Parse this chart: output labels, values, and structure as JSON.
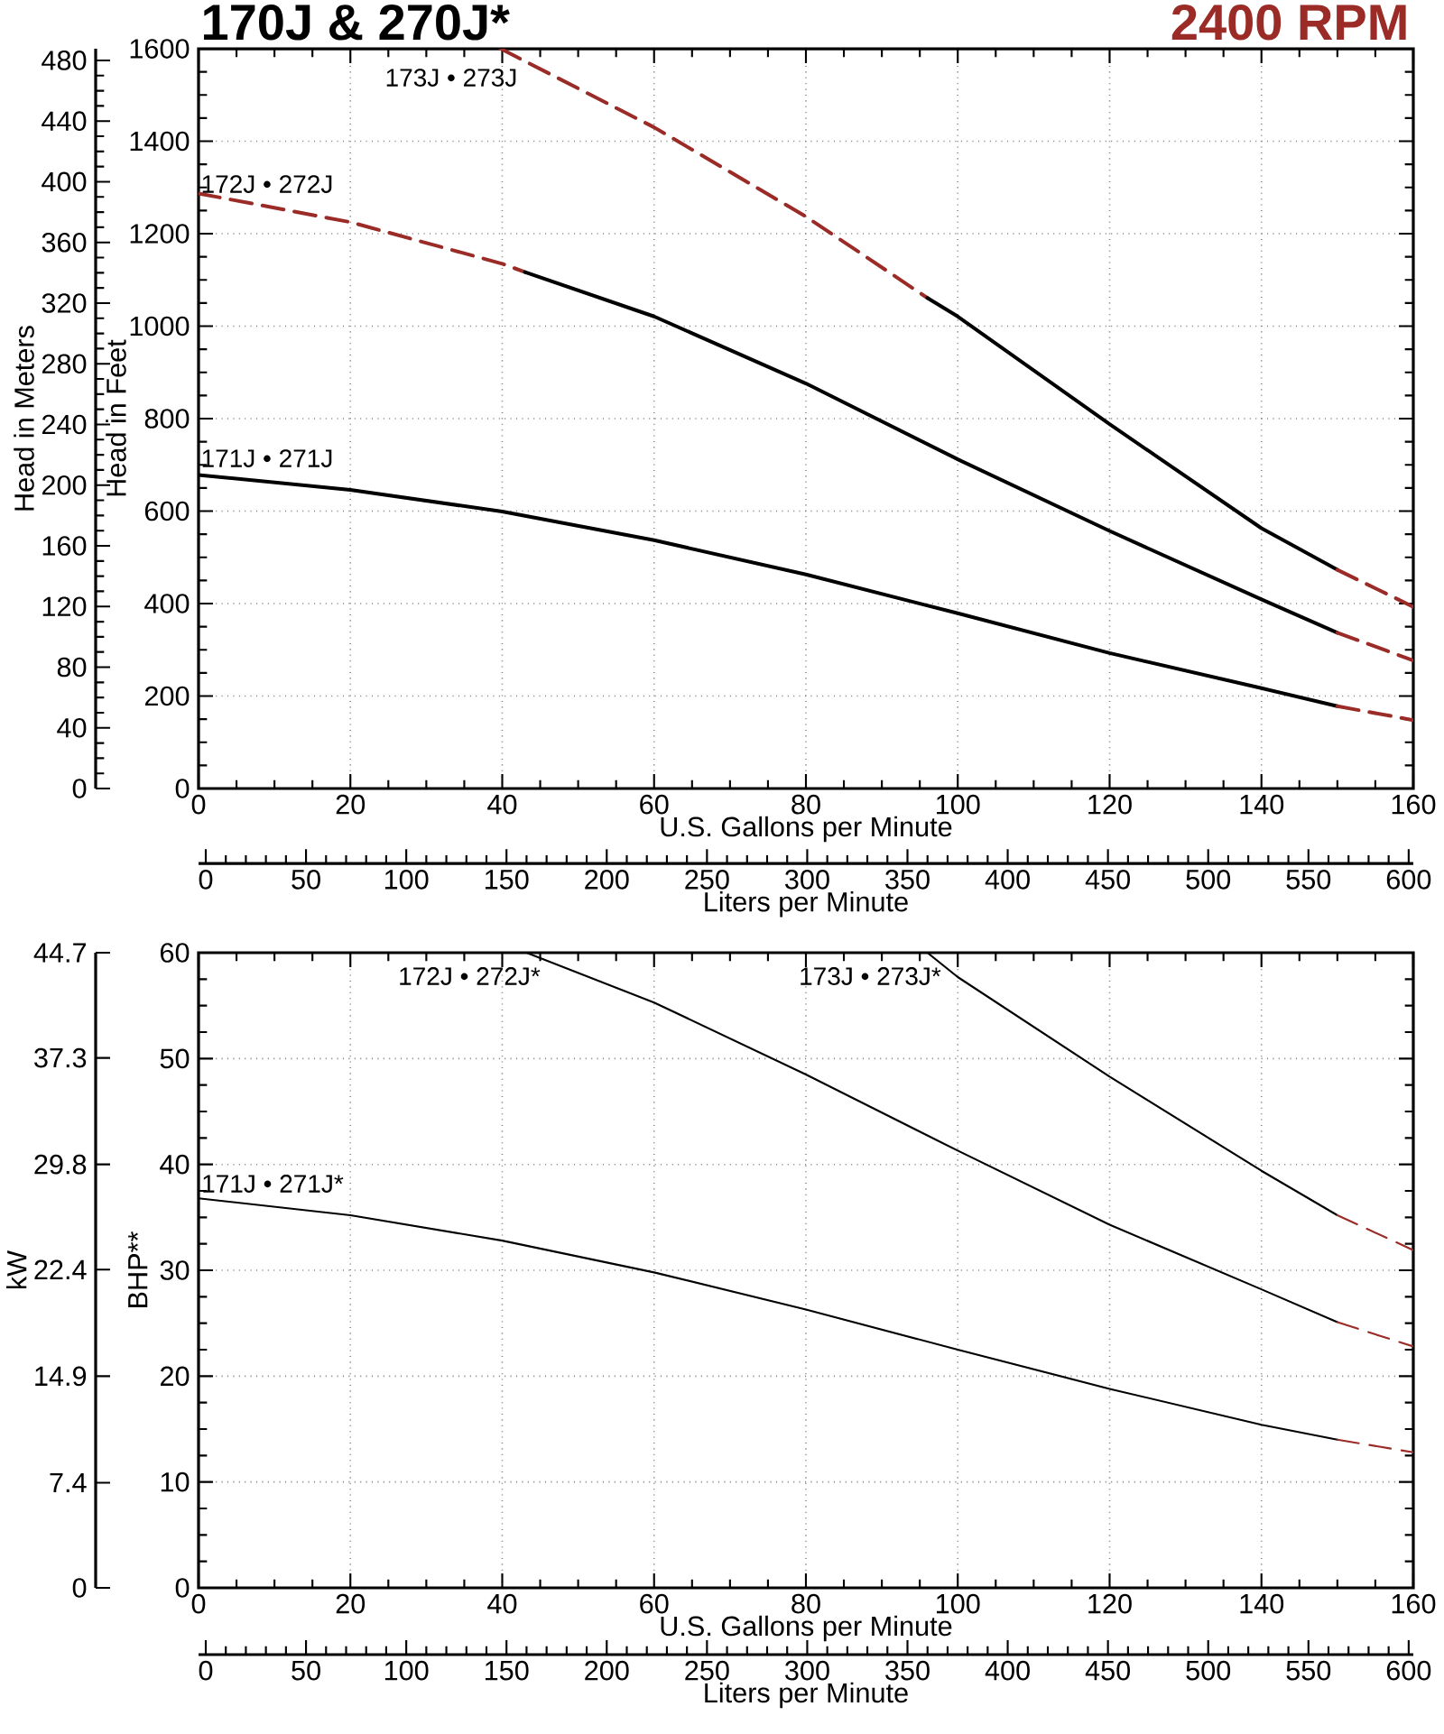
{
  "chart_data": [
    {
      "type": "line",
      "title": "170J & 270J*",
      "subtitle": "2400 RPM",
      "xlabel": "U.S. Gallons per Minute",
      "ylabel": "Head in Feet",
      "y2label": "Head in Meters",
      "x2label": "Liters per Minute",
      "xlim": [
        0,
        160
      ],
      "xticks": [
        0,
        20,
        40,
        60,
        80,
        100,
        120,
        140,
        160
      ],
      "ylim": [
        0,
        1600
      ],
      "yticks": [
        0,
        200,
        400,
        600,
        800,
        1000,
        1200,
        1400,
        1600
      ],
      "y2lim": [
        0,
        487.7
      ],
      "y2ticks": [
        0,
        40,
        80,
        120,
        160,
        200,
        240,
        280,
        320,
        360,
        400,
        440,
        480
      ],
      "x2lim": [
        -3.6,
        602.3
      ],
      "x2ticks": [
        0,
        50,
        100,
        150,
        200,
        250,
        300,
        350,
        400,
        450,
        500,
        550,
        600
      ],
      "grid": true,
      "series": [
        {
          "color": "#000000",
          "line_style": "solid",
          "x": [
            0,
            20,
            40,
            60,
            80,
            100,
            120,
            140,
            150
          ],
          "values": [
            678,
            646,
            599,
            537,
            463,
            379,
            293,
            217,
            178
          ]
        },
        {
          "color": "#9b2b27",
          "line_style": "dashed",
          "x": [
            150,
            160
          ],
          "values": [
            178,
            148
          ]
        },
        {
          "color": "#9b2b27",
          "line_style": "dashed",
          "x": [
            0,
            20,
            40,
            43
          ],
          "values": [
            1287,
            1225,
            1135,
            1117
          ]
        },
        {
          "color": "#000000",
          "line_style": "solid",
          "x": [
            43,
            60,
            80,
            100,
            120,
            140,
            150
          ],
          "values": [
            1117,
            1021,
            876,
            712,
            557,
            409,
            337
          ]
        },
        {
          "color": "#9b2b27",
          "line_style": "dashed",
          "x": [
            150,
            160
          ],
          "values": [
            337,
            277
          ]
        },
        {
          "color": "#9b2b27",
          "line_style": "dashed",
          "x": [
            39.8,
            60,
            80,
            96
          ],
          "values": [
            1600,
            1430,
            1237,
            1061
          ]
        },
        {
          "color": "#000000",
          "line_style": "solid",
          "x": [
            96,
            100,
            120,
            140,
            150
          ],
          "values": [
            1061,
            1021,
            788,
            563,
            473
          ]
        },
        {
          "color": "#9b2b27",
          "line_style": "dashed",
          "x": [
            150,
            160
          ],
          "values": [
            473,
            393
          ]
        }
      ],
      "annotations": [
        "173J • 273J",
        "172J • 272J",
        "171J • 271J"
      ]
    },
    {
      "type": "line",
      "xlabel": "U.S. Gallons per Minute",
      "ylabel": "BHP**",
      "y2label": "kW",
      "x2label": "Liters per Minute",
      "xlim": [
        0,
        160
      ],
      "xticks": [
        0,
        20,
        40,
        60,
        80,
        100,
        120,
        140,
        160
      ],
      "ylim": [
        0,
        60
      ],
      "yticks": [
        0,
        10,
        20,
        30,
        40,
        50,
        60
      ],
      "y2lim": [
        0,
        44.7
      ],
      "y2ticks": [
        0,
        7.4,
        14.9,
        22.4,
        29.8,
        37.3,
        44.7
      ],
      "x2lim": [
        -3.6,
        602.3
      ],
      "x2ticks": [
        0,
        50,
        100,
        150,
        200,
        250,
        300,
        350,
        400,
        450,
        500,
        550,
        600
      ],
      "grid": true,
      "series": [
        {
          "color": "#000000",
          "line_style": "solid",
          "x": [
            0,
            20,
            40,
            60,
            80,
            100,
            120,
            140,
            150
          ],
          "values": [
            36.8,
            35.2,
            32.8,
            29.8,
            26.3,
            22.5,
            18.8,
            15.4,
            14.0
          ]
        },
        {
          "color": "#9b2b27",
          "line_style": "dashed",
          "x": [
            150,
            160
          ],
          "values": [
            14.0,
            12.8
          ]
        },
        {
          "color": "#000000",
          "line_style": "solid",
          "x": [
            43.2,
            60,
            80,
            100,
            120,
            140,
            150
          ],
          "values": [
            60,
            55.3,
            48.5,
            41.3,
            34.3,
            28.2,
            25.1
          ]
        },
        {
          "color": "#9b2b27",
          "line_style": "dashed",
          "x": [
            150,
            160
          ],
          "values": [
            25.1,
            22.8
          ]
        },
        {
          "color": "#000000",
          "line_style": "solid",
          "x": [
            96,
            100,
            120,
            140,
            150
          ],
          "values": [
            60,
            57.7,
            48.3,
            39.4,
            35.2
          ]
        },
        {
          "color": "#9b2b27",
          "line_style": "dashed",
          "x": [
            150,
            160
          ],
          "values": [
            35.2,
            31.9
          ]
        }
      ],
      "annotations": [
        "172J • 272J*",
        "173J • 273J*",
        "171J • 271J*"
      ]
    }
  ]
}
